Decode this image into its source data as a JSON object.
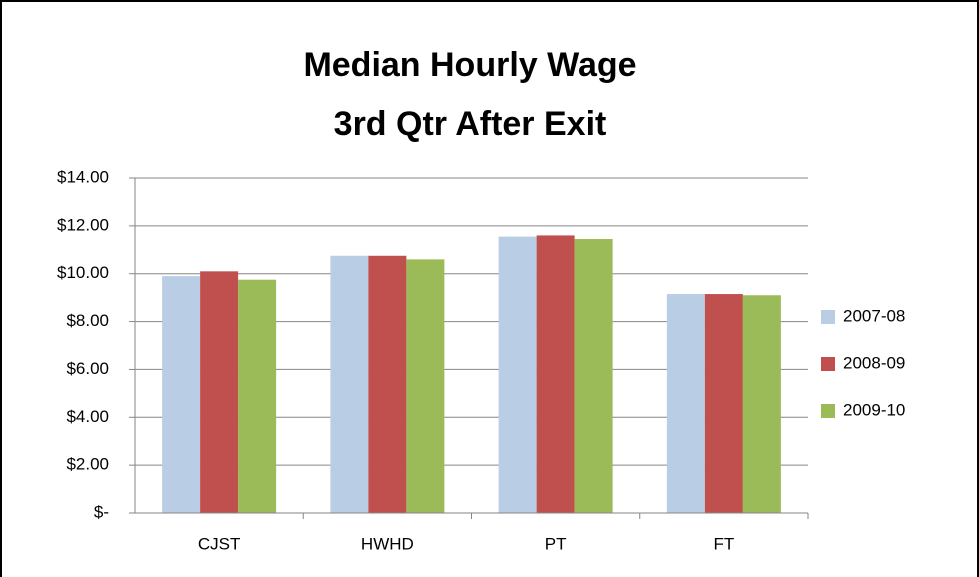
{
  "chart_data": {
    "type": "bar",
    "title": [
      "Median Hourly Wage",
      "3rd Qtr After Exit"
    ],
    "categories": [
      "CJST",
      "HWHD",
      "PT",
      "FT"
    ],
    "series": [
      {
        "name": "2007-08",
        "color": "#b9cde5",
        "values": [
          9.9,
          10.75,
          11.55,
          9.15
        ]
      },
      {
        "name": "2008-09",
        "color": "#c0504d",
        "values": [
          10.1,
          10.75,
          11.6,
          9.15
        ]
      },
      {
        "name": "2009-10",
        "color": "#9bbb59",
        "values": [
          9.75,
          10.6,
          11.45,
          9.1
        ]
      }
    ],
    "ylim": [
      0,
      14
    ],
    "yticks": [
      {
        "value": 0,
        "label": "$-"
      },
      {
        "value": 2,
        "label": "$2.00"
      },
      {
        "value": 4,
        "label": "$4.00"
      },
      {
        "value": 6,
        "label": "$6.00"
      },
      {
        "value": 8,
        "label": "$8.00"
      },
      {
        "value": 10,
        "label": "$10.00"
      },
      {
        "value": 12,
        "label": "$12.00"
      },
      {
        "value": 14,
        "label": "$14.00"
      }
    ],
    "grid": true,
    "legend": "right"
  }
}
